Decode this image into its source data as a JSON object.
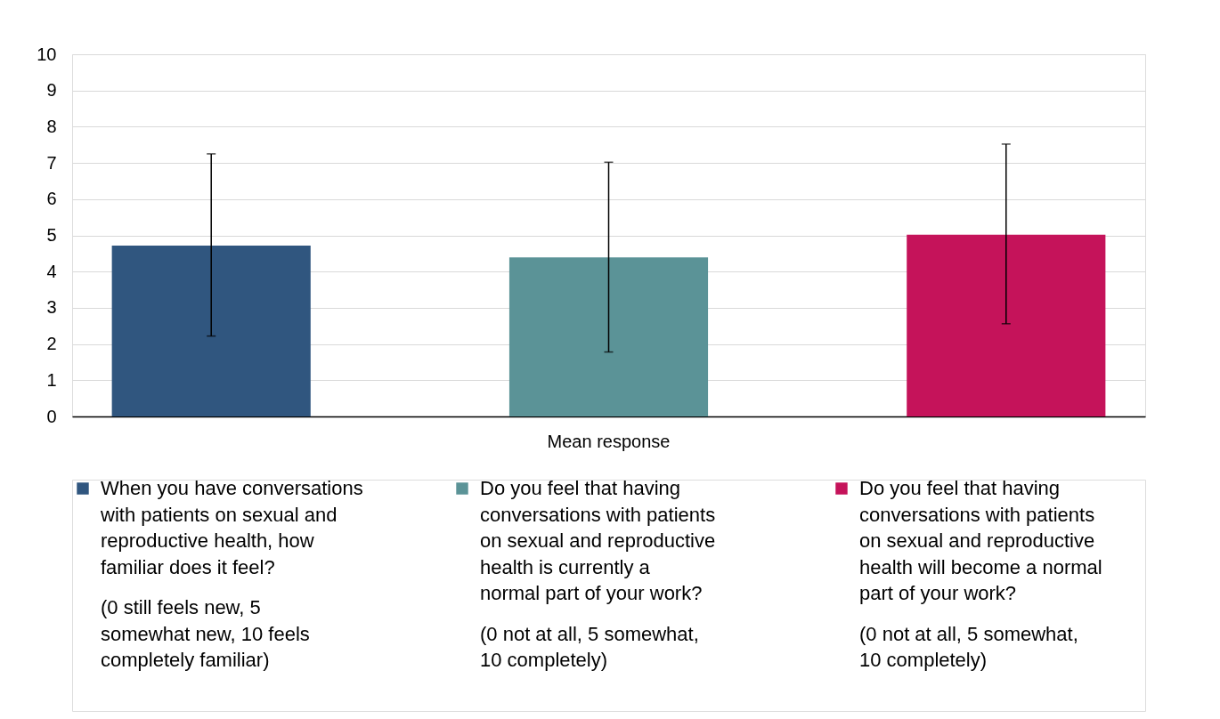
{
  "chart_data": {
    "type": "bar",
    "categories": [
      "Mean response"
    ],
    "series": [
      {
        "name": "When you have conversations with patients on sexual and reproductive health, how familiar does it feel?",
        "color": "#30567f",
        "values": [
          4.72
        ],
        "errors": [
          [
            2.22,
            7.25
          ]
        ]
      },
      {
        "name": "Do you feel that having conversations with patients on sexual and reproductive health is currently a normal part of your work?",
        "color": "#5b9397",
        "values": [
          4.39
        ],
        "errors": [
          [
            1.78,
            7.02
          ]
        ]
      },
      {
        "name": "Do you feel that having conversations with patients on sexual and reproductive health will become a normal part of your work?",
        "color": "#c5135a",
        "values": [
          5.02
        ],
        "errors": [
          [
            2.56,
            7.52
          ]
        ]
      }
    ],
    "annotations": [
      "(0 still feels new, 5 somewhat new, 10 feels completely familiar)",
      "(0 not at all, 5 somewhat, 10 completely)",
      "(0 not at all, 5 somewhat, 10 completely)"
    ],
    "ylim": [
      0,
      10
    ],
    "yticks": [
      0,
      1,
      2,
      3,
      4,
      5,
      6,
      7,
      8,
      9,
      10
    ],
    "grid": "y",
    "legend": "bottom"
  }
}
